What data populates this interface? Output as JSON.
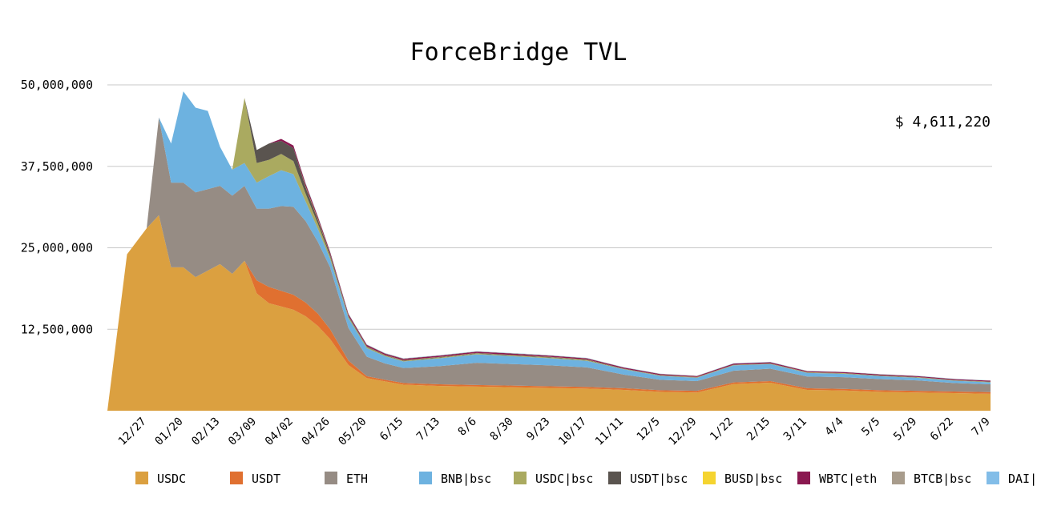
{
  "chart_data": {
    "type": "area",
    "title": "ForceBridge TVL",
    "current_value": "$ 4,611,220",
    "stacked": true,
    "grid": true,
    "legend_position": "bottom",
    "ylim": [
      0,
      50000000
    ],
    "yticks": [
      "50,000,000",
      "37,500,000",
      "25,000,000",
      "12,500,000"
    ],
    "ytick_values": [
      50000000,
      37500000,
      25000000,
      12500000
    ],
    "xticks": [
      "12/27",
      "01/20",
      "02/13",
      "03/09",
      "04/02",
      "04/26",
      "05/20",
      "6/15",
      "7/13",
      "8/6",
      "8/30",
      "9/23",
      "10/17",
      "11/11",
      "12/5",
      "12/29",
      "1/22",
      "2/15",
      "3/11",
      "4/4",
      "5/5",
      "5/29",
      "6/22",
      "7/9"
    ],
    "x": [
      "12/03",
      "12/15",
      "12/27",
      "01/03",
      "01/10",
      "01/20",
      "01/28",
      "02/05",
      "02/13",
      "02/21",
      "03/01",
      "03/09",
      "03/17",
      "03/25",
      "04/02",
      "04/10",
      "04/18",
      "04/26",
      "05/05",
      "05/20",
      "06/01",
      "6/15",
      "7/13",
      "8/6",
      "8/30",
      "9/23",
      "10/17",
      "11/11",
      "12/5",
      "12/29",
      "1/22",
      "2/15",
      "3/11",
      "4/4",
      "5/5",
      "5/29",
      "6/22",
      "7/9"
    ],
    "series": [
      {
        "name": "USDC",
        "color": "#dba040",
        "values": [
          0,
          24000000,
          28000000,
          30000000,
          22000000,
          22000000,
          20500000,
          21500000,
          22500000,
          21000000,
          23000000,
          18000000,
          16500000,
          16000000,
          15500000,
          14500000,
          13000000,
          11000000,
          7000000,
          5000000,
          4500000,
          4000000,
          3800000,
          3700000,
          3600000,
          3500000,
          3400000,
          3200000,
          2900000,
          2800000,
          4100000,
          4300000,
          3200000,
          3100000,
          2900000,
          2800000,
          2700000,
          2600000
        ]
      },
      {
        "name": "USDT",
        "color": "#e07030",
        "values": [
          0,
          0,
          0,
          0,
          0,
          0,
          0,
          0,
          0,
          0,
          0,
          2000000,
          2500000,
          2400000,
          2300000,
          2100000,
          1900000,
          1500000,
          700000,
          300000,
          250000,
          250000,
          250000,
          250000,
          250000,
          250000,
          250000,
          250000,
          250000,
          250000,
          250000,
          250000,
          250000,
          250000,
          250000,
          250000,
          250000,
          250000
        ]
      },
      {
        "name": "ETH",
        "color": "#968c84",
        "values": [
          0,
          0,
          0,
          15000000,
          13000000,
          13000000,
          13000000,
          12500000,
          12000000,
          12000000,
          11500000,
          11000000,
          12000000,
          13000000,
          13500000,
          12500000,
          11000000,
          9500000,
          5000000,
          3000000,
          2500000,
          2300000,
          2800000,
          3400000,
          3300000,
          3200000,
          3000000,
          2100000,
          1600000,
          1500000,
          1800000,
          1900000,
          1800000,
          1800000,
          1700000,
          1600000,
          1300000,
          1200000
        ]
      },
      {
        "name": "BNB|bsc",
        "color": "#6db2e0",
        "values": [
          0,
          0,
          0,
          0,
          6000000,
          14000000,
          13000000,
          12000000,
          6000000,
          4000000,
          3500000,
          4000000,
          5000000,
          5500000,
          5000000,
          3000000,
          2000000,
          1300000,
          1500000,
          1300000,
          1100000,
          1000000,
          1200000,
          1300000,
          1200000,
          1100000,
          1000000,
          800000,
          600000,
          500000,
          800000,
          700000,
          550000,
          500000,
          450000,
          400000,
          350000,
          300000
        ]
      },
      {
        "name": "USDC|bsc",
        "color": "#aaaa60",
        "values": [
          0,
          0,
          0,
          0,
          0,
          0,
          0,
          0,
          0,
          0,
          10000000,
          3000000,
          2500000,
          2500000,
          2000000,
          1200000,
          800000,
          400000,
          200000,
          150000,
          100000,
          100000,
          100000,
          100000,
          100000,
          100000,
          100000,
          50000,
          50000,
          50000,
          50000,
          50000,
          50000,
          50000,
          50000,
          50000,
          50000,
          50000
        ]
      },
      {
        "name": "USDT|bsc",
        "color": "#5a544f",
        "values": [
          0,
          0,
          0,
          0,
          0,
          0,
          0,
          0,
          0,
          0,
          0,
          2000000,
          2500000,
          2000000,
          2000000,
          1000000,
          600000,
          300000,
          150000,
          100000,
          80000,
          80000,
          80000,
          80000,
          80000,
          80000,
          80000,
          50000,
          50000,
          50000,
          50000,
          50000,
          50000,
          50000,
          50000,
          50000,
          50000,
          50000
        ]
      },
      {
        "name": "BUSD|bsc",
        "color": "#f5d430",
        "values": [
          0,
          0,
          0,
          0,
          0,
          0,
          0,
          0,
          0,
          0,
          0,
          0,
          0,
          0,
          0,
          100000,
          100000,
          50000,
          30000,
          30000,
          30000,
          30000,
          30000,
          30000,
          30000,
          30000,
          30000,
          20000,
          20000,
          20000,
          20000,
          20000,
          20000,
          20000,
          20000,
          20000,
          20000,
          20000
        ]
      },
      {
        "name": "WBTC|eth",
        "color": "#8a1850",
        "values": [
          0,
          0,
          0,
          0,
          0,
          0,
          0,
          0,
          0,
          0,
          0,
          0,
          0,
          300000,
          400000,
          400000,
          350000,
          300000,
          250000,
          220000,
          200000,
          200000,
          200000,
          200000,
          200000,
          180000,
          170000,
          160000,
          150000,
          150000,
          160000,
          160000,
          150000,
          150000,
          140000,
          140000,
          130000,
          130000
        ]
      },
      {
        "name": "BTCB|bsc",
        "color": "#a89c8c",
        "values": [
          0,
          0,
          0,
          0,
          0,
          0,
          0,
          0,
          0,
          0,
          0,
          0,
          0,
          0,
          0,
          100000,
          100000,
          80000,
          60000,
          50000,
          50000,
          50000,
          50000,
          50000,
          50000,
          50000,
          50000,
          40000,
          40000,
          40000,
          40000,
          40000,
          40000,
          40000,
          40000,
          40000,
          40000,
          40000
        ]
      },
      {
        "name": "DAI|eth",
        "color": "#82bde8",
        "values": [
          0,
          0,
          0,
          0,
          0,
          0,
          0,
          0,
          0,
          0,
          0,
          0,
          0,
          0,
          0,
          50000,
          50000,
          40000,
          30000,
          30000,
          30000,
          30000,
          30000,
          30000,
          30000,
          30000,
          30000,
          20000,
          20000,
          20000,
          20000,
          20000,
          20000,
          20000,
          20000,
          20000,
          20000,
          20000
        ]
      }
    ]
  }
}
